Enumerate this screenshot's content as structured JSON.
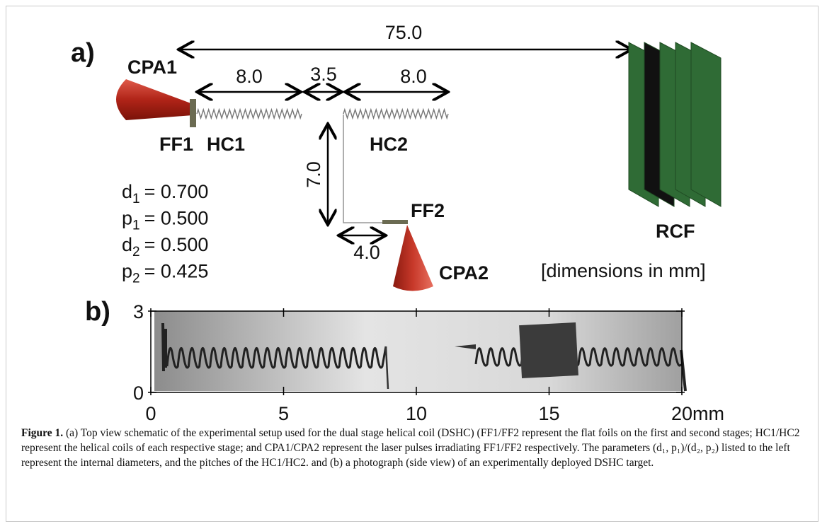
{
  "panel_a": {
    "label": "a)",
    "parts": {
      "cpa1": "CPA1",
      "ff1": "FF1",
      "hc1": "HC1",
      "hc2": "HC2",
      "ff2": "FF2",
      "cpa2": "CPA2",
      "rcf": "RCF"
    },
    "dimensions": {
      "total": "75.0",
      "hc1_length": "8.0",
      "gap": "3.5",
      "hc2_length": "8.0",
      "vertical": "7.0",
      "ff2_offset": "4.0"
    },
    "units_note": "[dimensions in mm]",
    "params": [
      {
        "symbol": "d",
        "subscript": "1",
        "value": "= 0.700"
      },
      {
        "symbol": "p",
        "subscript": "1",
        "value": "= 0.500"
      },
      {
        "symbol": "d",
        "subscript": "2",
        "value": "= 0.500"
      },
      {
        "symbol": "p",
        "subscript": "2",
        "value": "= 0.425"
      }
    ]
  },
  "panel_b": {
    "label": "b)",
    "xlim": [
      0,
      20
    ],
    "ylim": [
      0,
      3
    ],
    "xticks": [
      0,
      5,
      10,
      15,
      20
    ],
    "yticks": [
      0,
      3
    ],
    "x_unit": "mm"
  },
  "caption": {
    "label": "Figure 1.",
    "text": "(a) Top view schematic of the experimental setup used for the dual stage helical coil (DSHC) (FF1/FF2 represent the flat foils on the first and second stages; HC1/HC2 represent the helical coils of each respective stage; and CPA1/CPA2 represent the laser pulses irradiating FF1/FF2 respectively. The parameters (d₁, p₁)/(d₂, p₂) listed to the left represent the internal diameters, and the pitches of the HC1/HC2. and (b) a photograph (side view) of an experimentally deployed DSHC target."
  }
}
